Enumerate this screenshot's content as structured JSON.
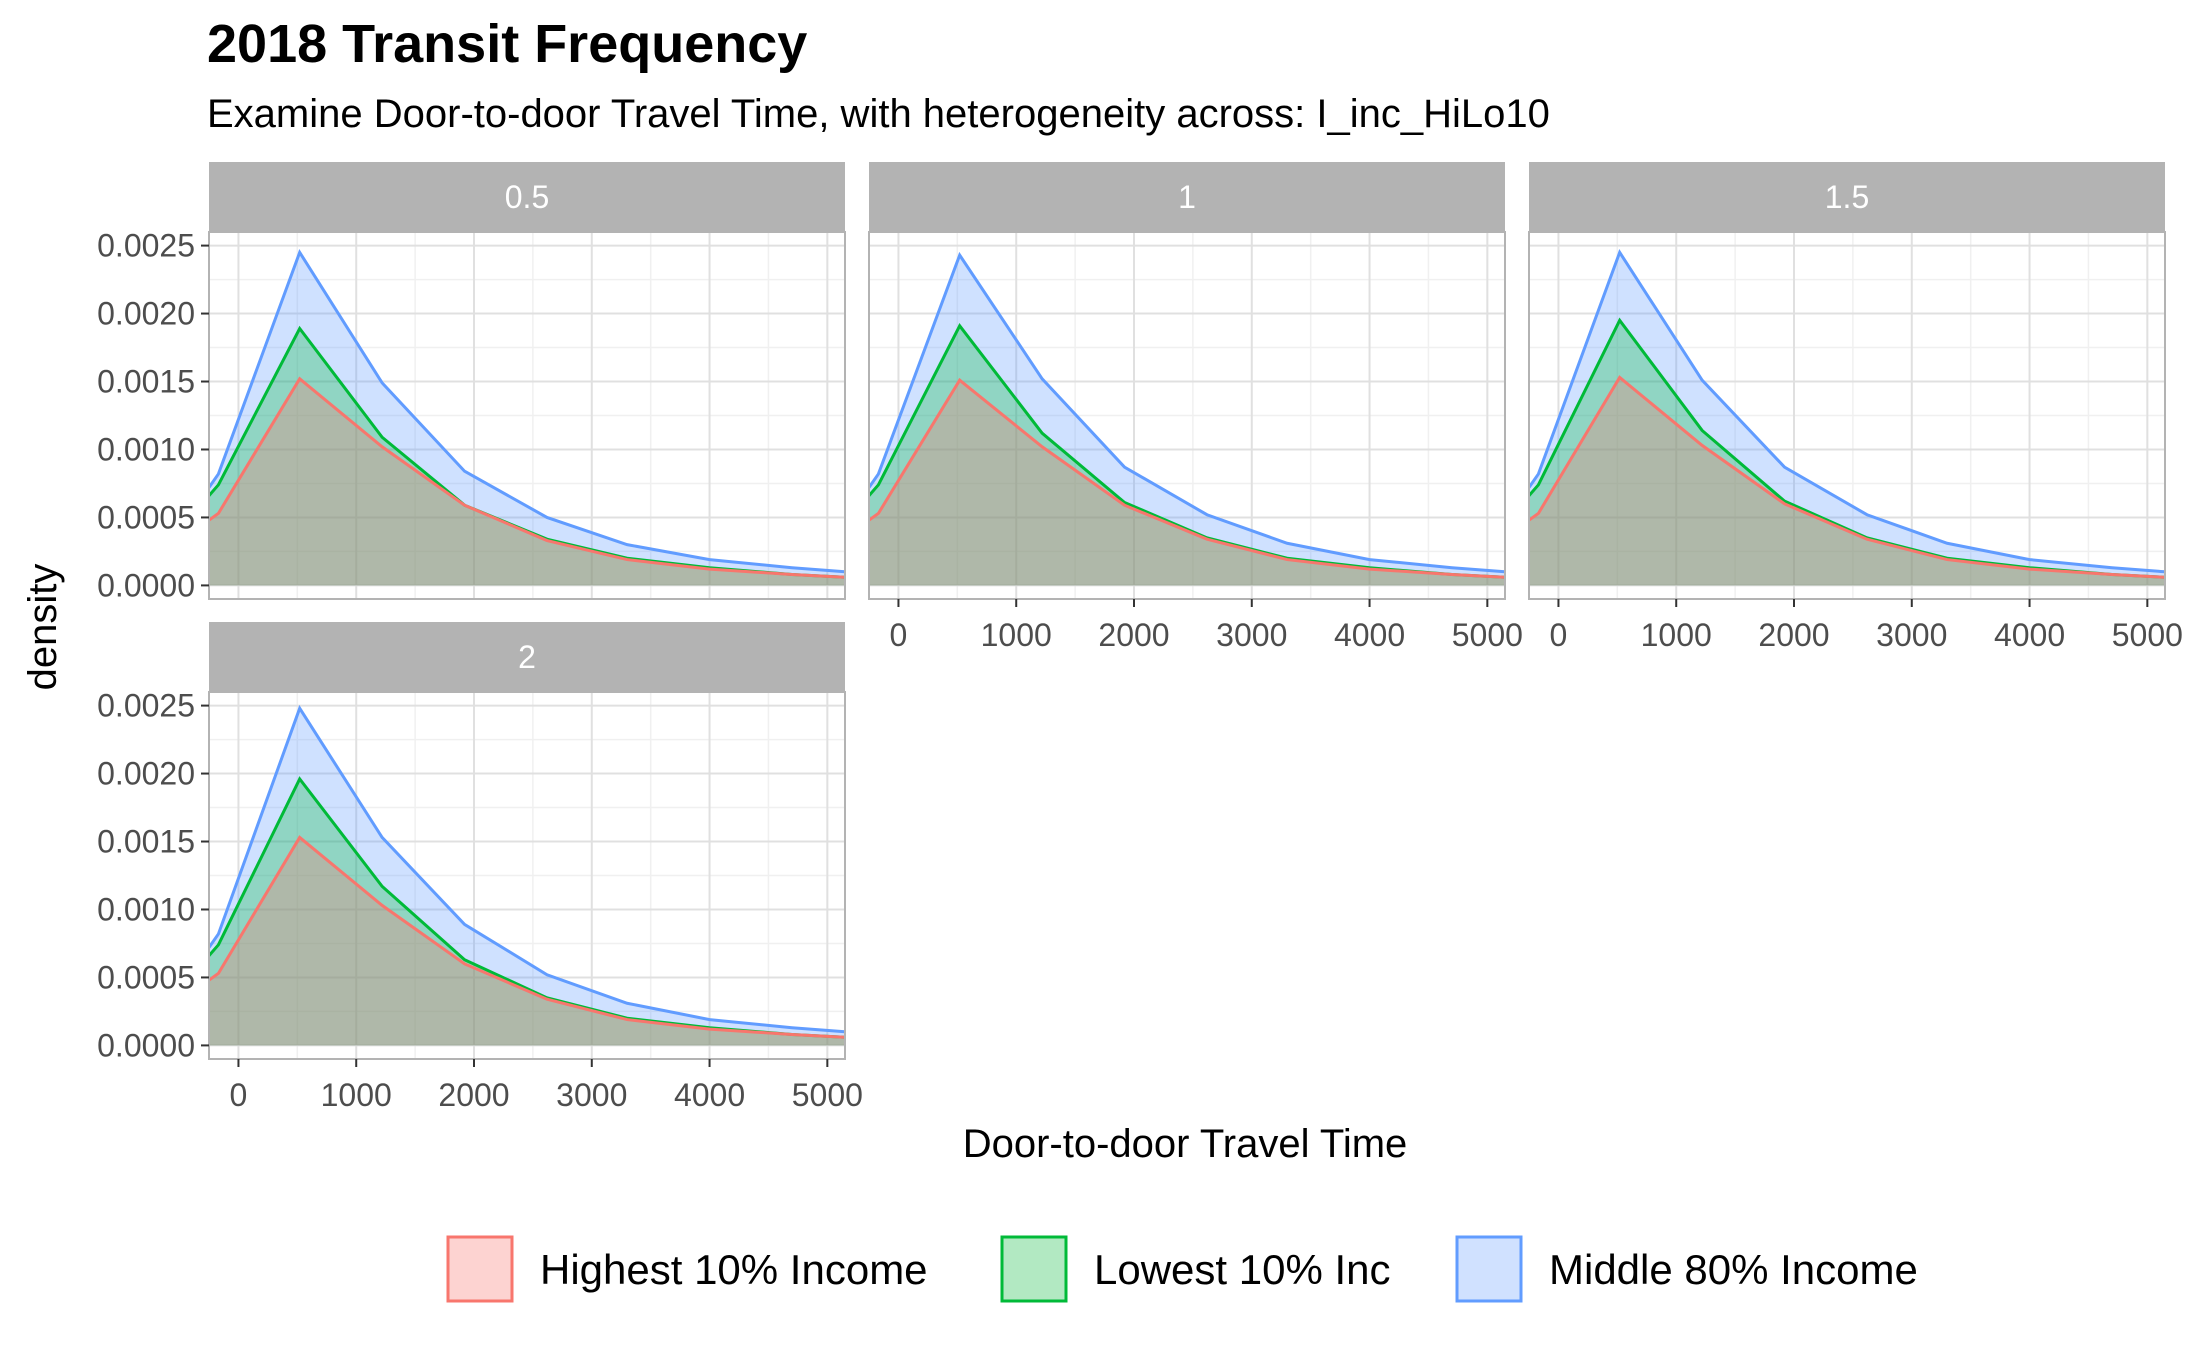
{
  "chart_data": {
    "type": "area",
    "title": "2018 Transit Frequency",
    "subtitle": "Examine Door-to-door Travel Time, with heterogeneity across: I_inc_HiLo10",
    "xlabel": "Door-to-door Travel Time",
    "ylabel": "density",
    "xlim": [
      -250,
      5150
    ],
    "ylim": [
      -0.0001,
      0.0026
    ],
    "x_ticks": [
      0,
      1000,
      2000,
      3000,
      4000,
      5000
    ],
    "x_tick_labels": [
      "0",
      "1000",
      "2000",
      "3000",
      "4000",
      "5000"
    ],
    "y_ticks": [
      0,
      0.0005,
      0.001,
      0.0015,
      0.002,
      0.0025
    ],
    "y_tick_labels": [
      "0.0000",
      "0.0005",
      "0.0010",
      "0.0015",
      "0.0020",
      "0.0025"
    ],
    "grid": true,
    "legend_position": "bottom",
    "x": [
      -250,
      -170,
      520,
      1220,
      1920,
      2620,
      3300,
      4000,
      4700,
      5150
    ],
    "legend": [
      {
        "name": "Highest 10% Income",
        "line": "#F8766D",
        "fill": "#FDD3D1"
      },
      {
        "name": "Lowest 10% Inc",
        "line": "#00BA38",
        "fill": "#B2E9C2"
      },
      {
        "name": "Middle 80% Income",
        "line": "#619CFF",
        "fill": "#D0E1FF"
      }
    ],
    "panels": [
      {
        "label": "0.5",
        "series": [
          {
            "name": "Middle 80% Income",
            "values": [
              0.00072,
              0.00082,
              0.00245,
              0.00149,
              0.00084,
              0.0005,
              0.0003,
              0.00019,
              0.00013,
              0.0001
            ]
          },
          {
            "name": "Lowest 10% Inc",
            "values": [
              0.00066,
              0.00074,
              0.00189,
              0.00109,
              0.00059,
              0.00034,
              0.0002,
              0.00013,
              8e-05,
              6e-05
            ]
          },
          {
            "name": "Highest 10% Income",
            "values": [
              0.00048,
              0.00053,
              0.00152,
              0.00102,
              0.00059,
              0.00033,
              0.00019,
              0.00012,
              8e-05,
              6e-05
            ]
          }
        ]
      },
      {
        "label": "1",
        "series": [
          {
            "name": "Middle 80% Income",
            "values": [
              0.00072,
              0.00082,
              0.00243,
              0.00152,
              0.00087,
              0.00052,
              0.00031,
              0.00019,
              0.00013,
              0.0001
            ]
          },
          {
            "name": "Lowest 10% Inc",
            "values": [
              0.00066,
              0.00074,
              0.00191,
              0.00112,
              0.00061,
              0.00035,
              0.0002,
              0.00013,
              8e-05,
              6e-05
            ]
          },
          {
            "name": "Highest 10% Income",
            "values": [
              0.00048,
              0.00053,
              0.00151,
              0.00102,
              0.00059,
              0.00034,
              0.00019,
              0.00012,
              8e-05,
              6e-05
            ]
          }
        ]
      },
      {
        "label": "1.5",
        "series": [
          {
            "name": "Middle 80% Income",
            "values": [
              0.00072,
              0.00082,
              0.00245,
              0.00151,
              0.00087,
              0.00052,
              0.00031,
              0.00019,
              0.00013,
              0.0001
            ]
          },
          {
            "name": "Lowest 10% Inc",
            "values": [
              0.00066,
              0.00074,
              0.00195,
              0.00114,
              0.00062,
              0.00035,
              0.0002,
              0.00013,
              8e-05,
              6e-05
            ]
          },
          {
            "name": "Highest 10% Income",
            "values": [
              0.00048,
              0.00053,
              0.00153,
              0.00103,
              0.0006,
              0.00034,
              0.00019,
              0.00012,
              8e-05,
              6e-05
            ]
          }
        ]
      },
      {
        "label": "2",
        "series": [
          {
            "name": "Middle 80% Income",
            "values": [
              0.00072,
              0.00082,
              0.00248,
              0.00153,
              0.00089,
              0.00052,
              0.00031,
              0.00019,
              0.00013,
              0.0001
            ]
          },
          {
            "name": "Lowest 10% Inc",
            "values": [
              0.00066,
              0.00074,
              0.00196,
              0.00117,
              0.00063,
              0.00035,
              0.0002,
              0.00013,
              8e-05,
              6e-05
            ]
          },
          {
            "name": "Highest 10% Income",
            "values": [
              0.00048,
              0.00053,
              0.00153,
              0.00103,
              0.0006,
              0.00034,
              0.00019,
              0.00012,
              8e-05,
              6e-05
            ]
          }
        ]
      }
    ]
  }
}
